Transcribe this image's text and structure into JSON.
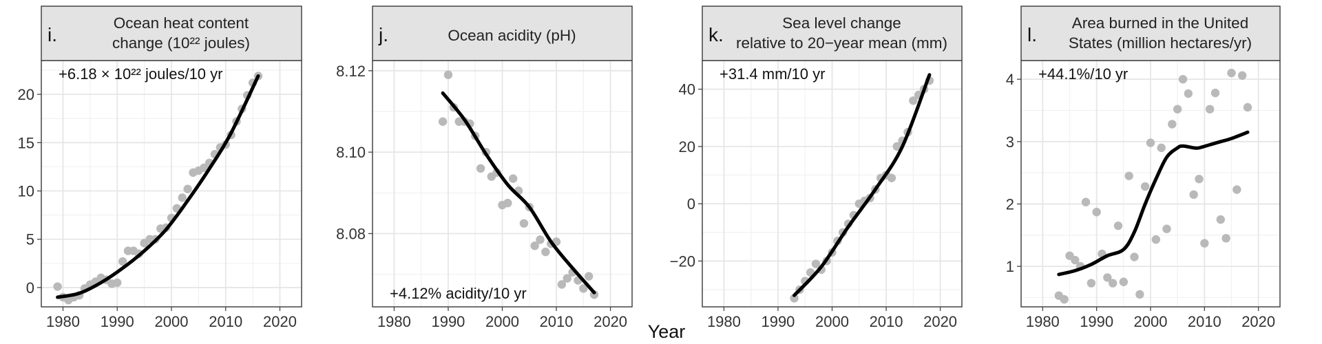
{
  "figure": {
    "x_axis_title": "Year"
  },
  "chart_data": [
    {
      "type": "scatter",
      "panel_letter": "i.",
      "title_lines": [
        "Ocean heat content",
        "change (10²² joules)"
      ],
      "annotation": "+6.18 × 10²² joules/10 yr",
      "annotation_position": "top-left",
      "xlim": [
        1976,
        2024
      ],
      "ylim": [
        -2,
        23.5
      ],
      "x_ticks": [
        1980,
        1990,
        2000,
        2010,
        2020
      ],
      "y_ticks": [
        0,
        5,
        10,
        15,
        20
      ],
      "y_tick_labels": [
        "0",
        "5",
        "10",
        "15",
        "20"
      ],
      "grid": true,
      "points": {
        "x": [
          1979,
          1980,
          1981,
          1982,
          1983,
          1984,
          1985,
          1986,
          1987,
          1988,
          1989,
          1990,
          1991,
          1992,
          1993,
          1994,
          1995,
          1996,
          1997,
          1998,
          1999,
          2000,
          2001,
          2002,
          2003,
          2004,
          2005,
          2006,
          2007,
          2008,
          2009,
          2010,
          2011,
          2012,
          2013,
          2014,
          2015,
          2016
        ],
        "y": [
          0.1,
          -1.0,
          -1.3,
          -1.0,
          -0.8,
          -0.1,
          0.3,
          0.6,
          1.0,
          0.8,
          0.4,
          0.5,
          2.7,
          3.8,
          3.8,
          3.5,
          4.6,
          5.0,
          5.0,
          6.1,
          6.2,
          7.2,
          8.2,
          9.3,
          10.2,
          11.9,
          12.1,
          12.4,
          12.9,
          13.8,
          14.5,
          14.8,
          15.8,
          17.2,
          18.5,
          19.9,
          21.2,
          21.9
        ]
      },
      "fit_line": {
        "x": [
          1979,
          1983,
          1987,
          1991,
          1995,
          1999,
          2003,
          2007,
          2011,
          2016
        ],
        "y": [
          -1.0,
          -0.6,
          0.5,
          2.0,
          3.8,
          6.0,
          9.0,
          12.3,
          16.0,
          21.9
        ]
      }
    },
    {
      "type": "scatter",
      "panel_letter": "j.",
      "title_lines": [
        "Ocean acidity (pH)"
      ],
      "annotation": "+4.12% acidity/10 yr",
      "annotation_position": "bottom-left",
      "xlim": [
        1976,
        2024
      ],
      "ylim": [
        8.062,
        8.1225
      ],
      "x_ticks": [
        1980,
        1990,
        2000,
        2010,
        2020
      ],
      "y_ticks": [
        8.08,
        8.1,
        8.12
      ],
      "y_tick_labels": [
        "8.08",
        "8.10",
        "8.12"
      ],
      "grid": true,
      "points": {
        "x": [
          1989,
          1990,
          1991,
          1992,
          1993,
          1994,
          1995,
          1996,
          1997,
          1998,
          1999,
          2000,
          2001,
          2002,
          2003,
          2004,
          2005,
          2006,
          2007,
          2008,
          2009,
          2010,
          2011,
          2012,
          2013,
          2014,
          2015,
          2016,
          2017
        ],
        "y": [
          8.1075,
          8.119,
          8.111,
          8.1075,
          8.1075,
          8.107,
          8.104,
          8.096,
          8.1,
          8.094,
          8.095,
          8.087,
          8.0875,
          8.0935,
          8.0905,
          8.0825,
          8.0865,
          8.077,
          8.0785,
          8.0755,
          8.0775,
          8.078,
          8.0675,
          8.069,
          8.0705,
          8.0685,
          8.0665,
          8.0695,
          8.065
        ]
      },
      "fit_line": {
        "x": [
          1989,
          1993,
          1997,
          2001,
          2005,
          2009,
          2013,
          2017
        ],
        "y": [
          8.1145,
          8.108,
          8.0995,
          8.092,
          8.0865,
          8.078,
          8.0715,
          8.0655
        ]
      }
    },
    {
      "type": "scatter",
      "panel_letter": "k.",
      "title_lines": [
        "Sea level change",
        "relative to 20−year mean (mm)"
      ],
      "annotation": "+31.4 mm/10 yr",
      "annotation_position": "top-left",
      "xlim": [
        1976,
        2024
      ],
      "ylim": [
        -36,
        50
      ],
      "x_ticks": [
        1980,
        1990,
        2000,
        2010,
        2020
      ],
      "y_ticks": [
        -20,
        0,
        20,
        40
      ],
      "y_tick_labels": [
        "−20",
        "0",
        "20",
        "40"
      ],
      "grid": true,
      "points": {
        "x": [
          1993,
          1994,
          1995,
          1996,
          1997,
          1998,
          1999,
          2000,
          2001,
          2002,
          2003,
          2004,
          2005,
          2006,
          2007,
          2008,
          2009,
          2010,
          2011,
          2012,
          2013,
          2014,
          2015,
          2016,
          2017,
          2018
        ],
        "y": [
          -33,
          -30,
          -27,
          -24,
          -21,
          -23,
          -20,
          -17,
          -13,
          -10,
          -7,
          -4,
          0,
          1,
          2,
          5,
          9,
          10,
          9,
          20,
          22,
          25,
          36,
          38,
          40,
          43
        ]
      },
      "fit_line": {
        "x": [
          1993,
          1998,
          2003,
          2008,
          2013,
          2018
        ],
        "y": [
          -32,
          -22,
          -8,
          5,
          20,
          45
        ]
      }
    },
    {
      "type": "scatter",
      "panel_letter": "l.",
      "title_lines": [
        "Area burned in the United",
        "States (million hectares/yr)"
      ],
      "annotation": "+44.1%/10 yr",
      "annotation_position": "top-left",
      "xlim": [
        1976,
        2024
      ],
      "ylim": [
        0.35,
        4.3
      ],
      "x_ticks": [
        1980,
        1990,
        2000,
        2010,
        2020
      ],
      "y_ticks": [
        1,
        2,
        3,
        4
      ],
      "y_tick_labels": [
        "1",
        "2",
        "3",
        "4"
      ],
      "grid": true,
      "points": {
        "x": [
          1983,
          1984,
          1985,
          1986,
          1987,
          1988,
          1989,
          1990,
          1991,
          1992,
          1993,
          1994,
          1995,
          1996,
          1997,
          1998,
          1999,
          2000,
          2001,
          2002,
          2003,
          2004,
          2005,
          2006,
          2007,
          2008,
          2009,
          2010,
          2011,
          2012,
          2013,
          2014,
          2015,
          2016,
          2017,
          2018
        ],
        "y": [
          0.53,
          0.47,
          1.17,
          1.1,
          1.0,
          2.03,
          0.73,
          1.87,
          1.2,
          0.82,
          0.73,
          1.65,
          0.75,
          2.45,
          1.15,
          0.55,
          2.28,
          2.98,
          1.43,
          2.9,
          1.6,
          3.28,
          3.52,
          4.0,
          3.77,
          2.15,
          2.4,
          1.37,
          3.52,
          3.78,
          1.75,
          1.45,
          4.1,
          2.23,
          4.06,
          3.55
        ]
      },
      "fit_line": {
        "x": [
          1983,
          1986,
          1989,
          1992,
          1995,
          1997,
          1999,
          2001,
          2003,
          2005,
          2006,
          2008,
          2009,
          2011,
          2013,
          2015,
          2018
        ],
        "y": [
          0.87,
          0.93,
          1.03,
          1.17,
          1.27,
          1.55,
          2.0,
          2.4,
          2.75,
          2.9,
          2.93,
          2.9,
          2.9,
          2.95,
          3.0,
          3.05,
          3.15
        ]
      }
    }
  ]
}
